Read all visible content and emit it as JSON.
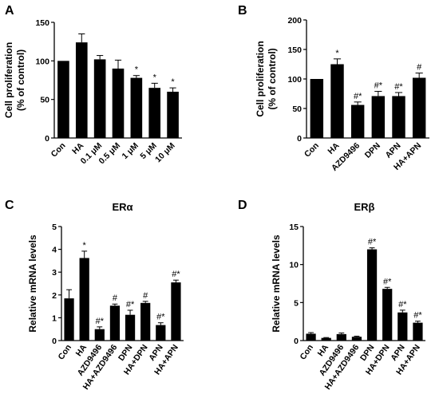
{
  "chart_data": [
    {
      "panel": "A",
      "type": "bar",
      "ylabel": [
        "Cell proliferation",
        "(% of control)"
      ],
      "ylim": [
        0,
        150
      ],
      "yticks": [
        "0",
        "50",
        "100",
        "150"
      ],
      "categories": [
        "Con",
        "HA",
        "0.1 μM",
        "0.5 μM",
        "1 μM",
        "5 μM",
        "10 μM"
      ],
      "values": [
        100,
        124,
        102,
        90,
        78,
        65,
        60
      ],
      "errors": [
        0,
        11,
        5,
        11,
        3,
        6,
        5
      ],
      "annotations": [
        "",
        "",
        "",
        "",
        "*",
        "*",
        "*"
      ]
    },
    {
      "panel": "B",
      "type": "bar",
      "ylabel": [
        "Cell proliferation",
        "(% of control)"
      ],
      "ylim": [
        0,
        200
      ],
      "yticks": [
        "0",
        "50",
        "100",
        "150",
        "200"
      ],
      "categories": [
        "Con",
        "HA",
        "AZD9496",
        "DPN",
        "APN",
        "HA+APN"
      ],
      "values": [
        100,
        125,
        56,
        71,
        71,
        102
      ],
      "errors": [
        0,
        9,
        5,
        8,
        6,
        8
      ],
      "annotations": [
        "",
        "*",
        "#*",
        "#*",
        "#*",
        "#"
      ]
    },
    {
      "panel": "C",
      "type": "bar",
      "title": "ERα",
      "ylabel": [
        "Relative mRNA levels"
      ],
      "ylim": [
        0,
        5
      ],
      "yticks": [
        "0",
        "1",
        "2",
        "3",
        "4",
        "5"
      ],
      "categories": [
        "Con",
        "HA",
        "AZD9496",
        "HA+AZD9496",
        "DPN",
        "HA+DPN",
        "APN",
        "HA+APN"
      ],
      "values": [
        1.85,
        3.62,
        0.5,
        1.53,
        1.13,
        1.65,
        0.68,
        2.55
      ],
      "errors": [
        0.38,
        0.3,
        0.1,
        0.07,
        0.2,
        0.07,
        0.1,
        0.1
      ],
      "annotations": [
        "",
        "*",
        "#*",
        "#",
        "#*",
        "#",
        "#*",
        "#*"
      ]
    },
    {
      "panel": "D",
      "type": "bar",
      "title": "ERβ",
      "ylabel": [
        "Relative mRNA levels"
      ],
      "ylim": [
        0,
        15
      ],
      "yticks": [
        "0",
        "5",
        "10",
        "15"
      ],
      "categories": [
        "Con",
        "HA",
        "AZD9496",
        "HA+AZD9496",
        "DPN",
        "HA+DPN",
        "APN",
        "HA+APN"
      ],
      "values": [
        0.9,
        0.35,
        0.85,
        0.5,
        12.0,
        6.8,
        3.7,
        2.35
      ],
      "errors": [
        0.15,
        0.05,
        0.15,
        0.08,
        0.2,
        0.2,
        0.3,
        0.2
      ],
      "annotations": [
        "",
        "",
        "",
        "",
        "#*",
        "#*",
        "#*",
        "#*"
      ]
    }
  ]
}
